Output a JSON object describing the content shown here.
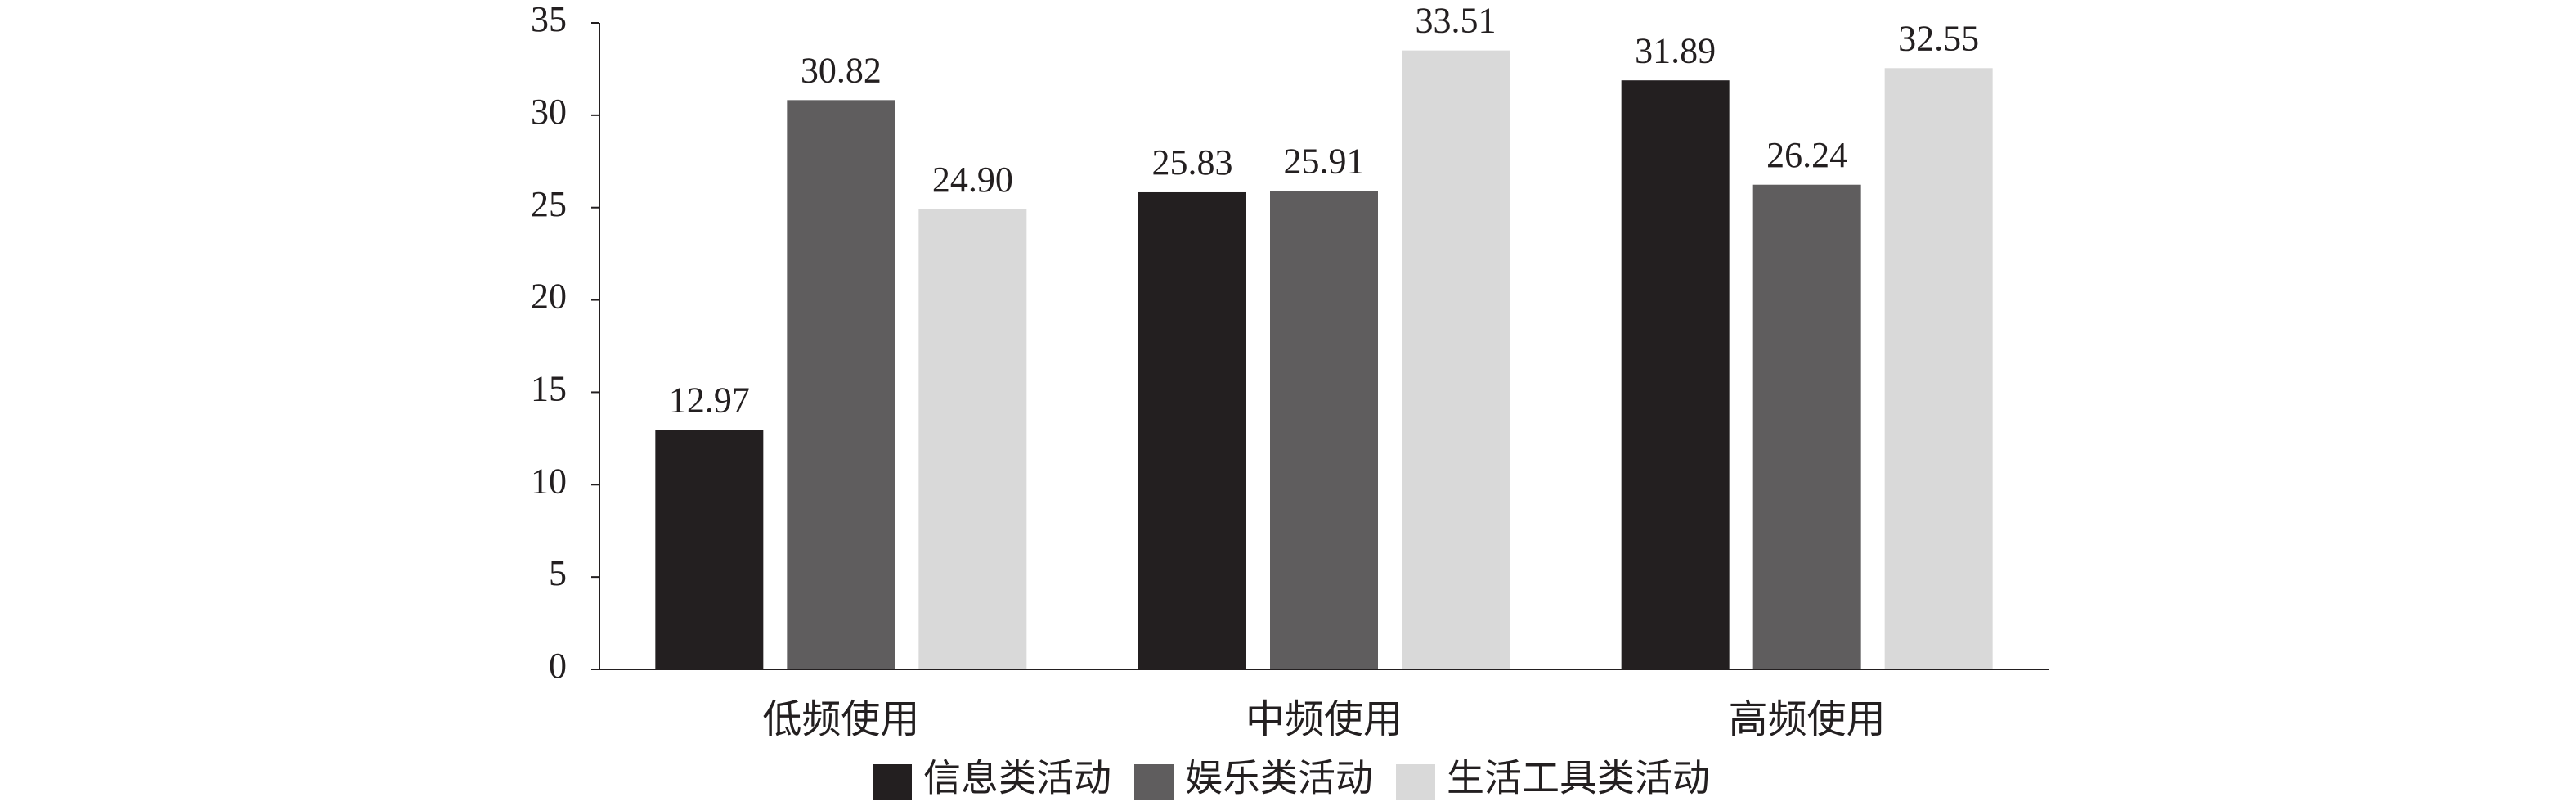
{
  "chart_data": {
    "type": "bar",
    "categories": [
      "低频使用",
      "中频使用",
      "高频使用"
    ],
    "series": [
      {
        "name": "信息类活动",
        "color": "#231f20",
        "values": [
          12.97,
          25.83,
          31.89
        ],
        "value_labels": [
          "12.97",
          "25.83",
          "31.89"
        ]
      },
      {
        "name": "娱乐类活动",
        "color": "#5f5d5e",
        "values": [
          30.82,
          25.91,
          26.24
        ],
        "value_labels": [
          "30.82",
          "25.91",
          "26.24"
        ]
      },
      {
        "name": "生活工具类活动",
        "color": "#d9d9d9",
        "values": [
          24.9,
          33.51,
          32.55
        ],
        "value_labels": [
          "24.90",
          "33.51",
          "32.55"
        ]
      }
    ],
    "ylim": [
      0,
      35
    ],
    "yticks": [
      0,
      5,
      10,
      15,
      20,
      25,
      30,
      35
    ],
    "grid": false,
    "legend": "bottom"
  }
}
